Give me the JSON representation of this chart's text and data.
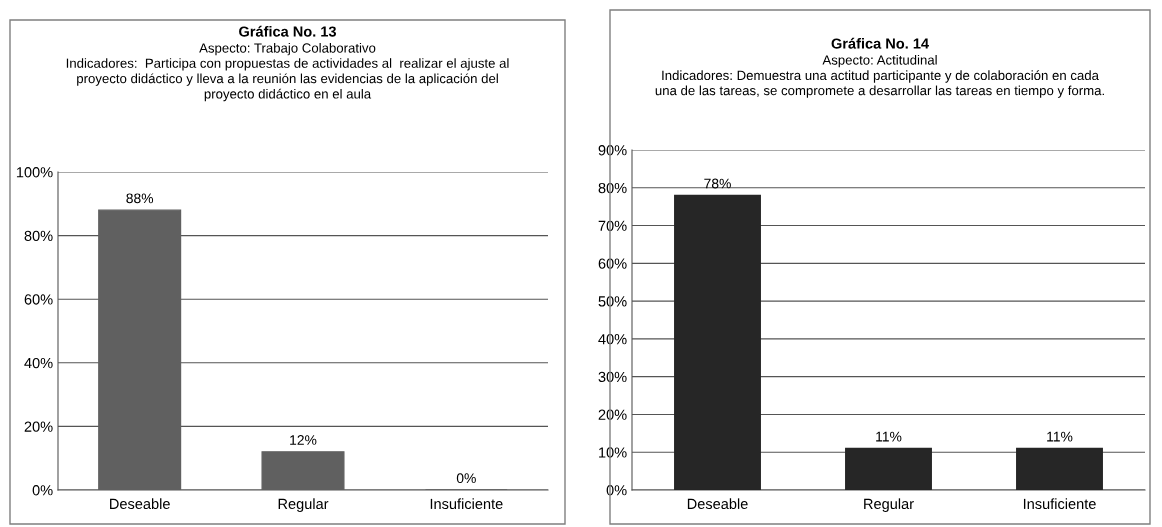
{
  "chart_data": [
    {
      "type": "bar",
      "title": "Gráfica No. 13",
      "subtitle": "Aspecto: Trabajo Colaborativo\nIndicadores:  Participa con propuestas de actividades al  realizar el ajuste al\nproyecto didáctico y lleva a la reunión las evidencias de la aplicación del\nproyecto didáctico en el aula",
      "categories": [
        "Deseable",
        "Regular",
        "Insuficiente"
      ],
      "series": [
        {
          "color": "#606060",
          "values": [
            88,
            12,
            0
          ],
          "value_labels": [
            "88%",
            "12%",
            "0%"
          ]
        }
      ],
      "ylim": [
        0,
        100
      ],
      "yticks": [
        {
          "value": 0,
          "label": "0%"
        },
        {
          "value": 20,
          "label": "20%"
        },
        {
          "value": 40,
          "label": "40%"
        },
        {
          "value": 60,
          "label": "60%"
        },
        {
          "value": 80,
          "label": "80%"
        },
        {
          "value": 100,
          "label": "100%"
        }
      ],
      "grid": "y",
      "legend": false
    },
    {
      "type": "bar",
      "title": "Gráfica No. 14",
      "subtitle": "Aspecto: Actitudinal\nIndicadores: Demuestra una actitud participante y de colaboración en cada\nuna de las tareas, se compromete a desarrollar las tareas en tiempo y forma.",
      "categories": [
        "Deseable",
        "Regular",
        "Insuficiente"
      ],
      "series": [
        {
          "color": "#262626",
          "values": [
            78,
            11,
            11
          ],
          "value_labels": [
            "78%",
            "11%",
            "11%"
          ]
        }
      ],
      "ylim": [
        0,
        90
      ],
      "yticks": [
        {
          "value": 0,
          "label": "0%"
        },
        {
          "value": 10,
          "label": "10%"
        },
        {
          "value": 20,
          "label": "20%"
        },
        {
          "value": 30,
          "label": "30%"
        },
        {
          "value": 40,
          "label": "40%"
        },
        {
          "value": 50,
          "label": "50%"
        },
        {
          "value": 60,
          "label": "60%"
        },
        {
          "value": 70,
          "label": "70%"
        },
        {
          "value": 80,
          "label": "80%"
        },
        {
          "value": 90,
          "label": "90%"
        }
      ],
      "grid": "y",
      "legend": false
    }
  ]
}
